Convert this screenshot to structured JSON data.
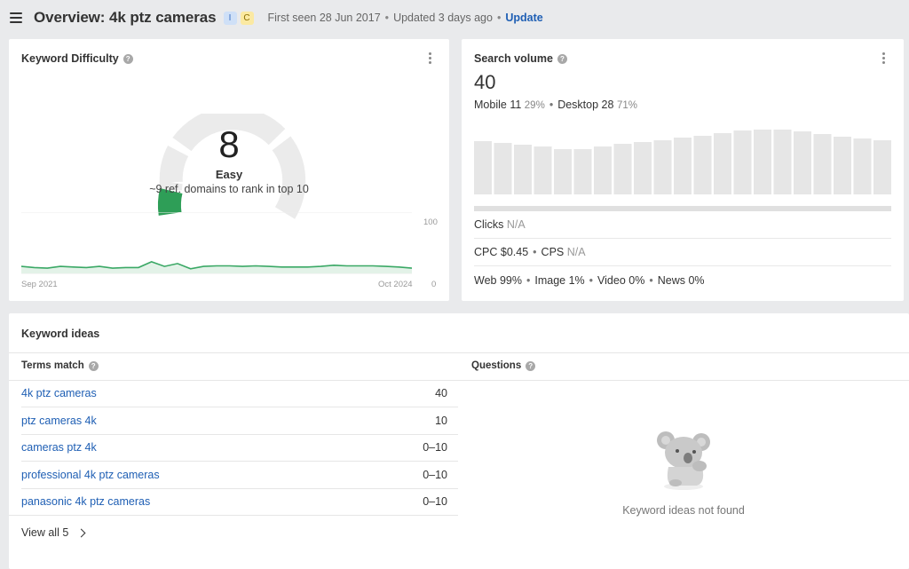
{
  "header": {
    "title": "Overview: 4k ptz cameras",
    "badges": [
      "I",
      "C"
    ],
    "first_seen": "First seen 28 Jun 2017",
    "updated": "Updated 3 days ago",
    "update_link": "Update"
  },
  "kd": {
    "title": "Keyword Difficulty",
    "value": "8",
    "level": "Easy",
    "subtitle": "~9 ref. domains to rank in top 10",
    "trend_start": "Sep 2021",
    "trend_end": "Oct 2024",
    "y_max": "100",
    "y_min": "0",
    "trend_values": [
      12,
      10,
      9,
      12,
      11,
      10,
      12,
      9,
      10,
      10,
      20,
      12,
      17,
      8,
      12,
      13,
      13,
      12,
      13,
      12,
      11,
      11,
      11,
      12,
      14,
      13,
      13,
      13,
      12,
      11,
      9
    ],
    "gauge_color": "#2e9e57"
  },
  "sv": {
    "title": "Search volume",
    "value": "40",
    "mobile_label": "Mobile",
    "mobile_value": "11",
    "mobile_pct": "29%",
    "desktop_label": "Desktop",
    "desktop_value": "28",
    "desktop_pct": "71%",
    "bars": [
      60,
      58,
      56,
      54,
      51,
      51,
      54,
      57,
      59,
      61,
      64,
      66,
      69,
      72,
      73,
      73,
      71,
      68,
      65,
      63,
      61
    ],
    "clicks_label": "Clicks",
    "clicks_value": "N/A",
    "cpc": "CPC $0.45",
    "cps_label": "CPS",
    "cps_value": "N/A",
    "web": "Web 99%",
    "image": "Image 1%",
    "video": "Video 0%",
    "news": "News 0%"
  },
  "ideas": {
    "title": "Keyword ideas",
    "terms_title": "Terms match",
    "questions_title": "Questions",
    "rows": [
      {
        "keyword": "4k ptz cameras",
        "volume": "40"
      },
      {
        "keyword": "ptz cameras 4k",
        "volume": "10"
      },
      {
        "keyword": "cameras ptz 4k",
        "volume": "0–10"
      },
      {
        "keyword": "professional 4k ptz cameras",
        "volume": "0–10"
      },
      {
        "keyword": "panasonic 4k ptz cameras",
        "volume": "0–10"
      }
    ],
    "view_all": "View all 5",
    "empty_message": "Keyword ideas not found"
  }
}
